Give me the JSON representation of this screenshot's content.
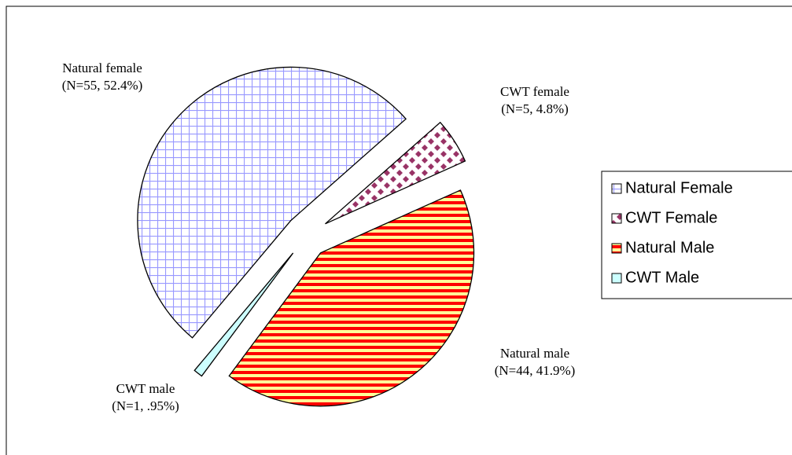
{
  "chart_data": {
    "type": "pie",
    "categories": [
      "Natural Female",
      "CWT Female",
      "Natural Male",
      "CWT Male"
    ],
    "labels": [
      "Natural female",
      "CWT female",
      "Natural male",
      "CWT male"
    ],
    "values": [
      52.4,
      4.8,
      41.9,
      0.95
    ],
    "value_labels": [
      "(N=55, 52.4%)",
      "(N=5, 4.8%)",
      "(N=44, 41.9%)",
      "(N=1, .95%)"
    ],
    "colors": [
      "#9999ff",
      "#993366",
      "#ff0000",
      "#ccffff"
    ],
    "legend": "right"
  }
}
